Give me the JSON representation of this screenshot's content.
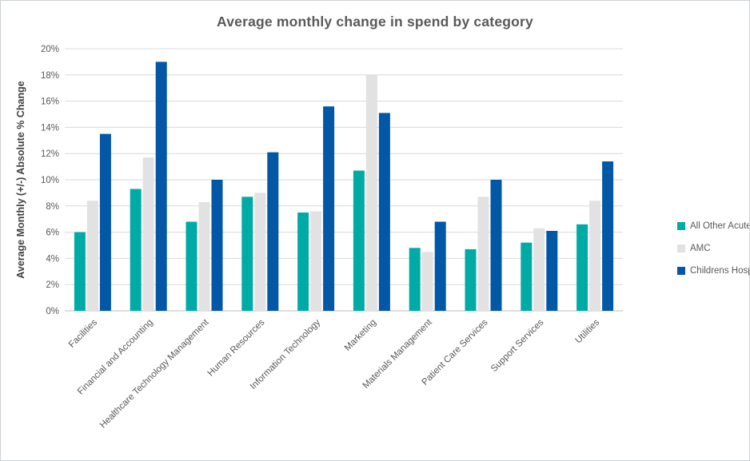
{
  "chart_data": {
    "type": "bar",
    "title": "Average monthly change in spend by category",
    "xlabel": "",
    "ylabel": "Average Monthly (+/-) Absolute % Change",
    "ylim": [
      0,
      20
    ],
    "ytick_step": 2,
    "ytick_labels": [
      "0%",
      "2%",
      "4%",
      "6%",
      "8%",
      "10%",
      "12%",
      "14%",
      "16%",
      "18%",
      "20%"
    ],
    "grid": true,
    "legend_position": "right",
    "categories": [
      "Facilities",
      "Financial and Accounting",
      "Healthcare Technology Management",
      "Human Resources",
      "Information Technology",
      "Marketing",
      "Materials Management",
      "Patient Care Services",
      "Support Services",
      "Utilities"
    ],
    "series": [
      {
        "name": "All Other Acute",
        "color": "#00ABA6",
        "values": [
          6.0,
          9.3,
          6.8,
          8.7,
          7.5,
          10.7,
          4.8,
          4.7,
          5.2,
          6.6
        ]
      },
      {
        "name": "AMC",
        "color": "#E2E2E2",
        "values": [
          8.4,
          11.7,
          8.3,
          9.0,
          7.6,
          18.0,
          4.5,
          8.7,
          6.3,
          8.4
        ]
      },
      {
        "name": "Childrens Hospital",
        "color": "#0257A6",
        "values": [
          13.5,
          19.0,
          10.0,
          12.1,
          15.6,
          15.1,
          6.8,
          10.0,
          6.1,
          11.4
        ]
      }
    ]
  },
  "colors": {
    "title_text": "#595959",
    "axis_text": "#595959",
    "gridline": "#D9D9D9",
    "axis_line": "#BFBFBF",
    "border": "#CDD2D6",
    "background": "#FFFFFF"
  }
}
